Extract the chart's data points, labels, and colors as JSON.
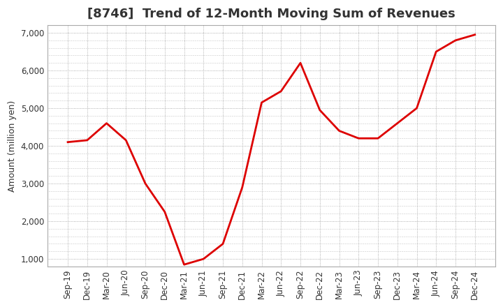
{
  "title": "[8746]  Trend of 12-Month Moving Sum of Revenues",
  "ylabel": "Amount (million yen)",
  "line_color": "#dd0000",
  "background_color": "#ffffff",
  "grid_color": "#999999",
  "x_labels": [
    "Sep-19",
    "Dec-19",
    "Mar-20",
    "Jun-20",
    "Sep-20",
    "Dec-20",
    "Mar-21",
    "Jun-21",
    "Sep-21",
    "Dec-21",
    "Mar-22",
    "Jun-22",
    "Sep-22",
    "Dec-22",
    "Mar-23",
    "Jun-23",
    "Sep-23",
    "Dec-23",
    "Mar-24",
    "Jun-24",
    "Sep-24",
    "Dec-24"
  ],
  "values": [
    4100,
    4150,
    4600,
    4150,
    3000,
    2250,
    850,
    1000,
    1400,
    2900,
    5150,
    5450,
    6200,
    4950,
    4400,
    4200,
    4200,
    4600,
    5000,
    6500,
    6800,
    6950
  ],
  "ylim": [
    800,
    7200
  ],
  "yticks": [
    1000,
    2000,
    3000,
    4000,
    5000,
    6000,
    7000
  ],
  "ytick_labels": [
    "1,000",
    "2,000",
    "3,000",
    "4,000",
    "5,000",
    "6,000",
    "7,000"
  ],
  "title_fontsize": 13,
  "label_fontsize": 9,
  "tick_fontsize": 8.5
}
